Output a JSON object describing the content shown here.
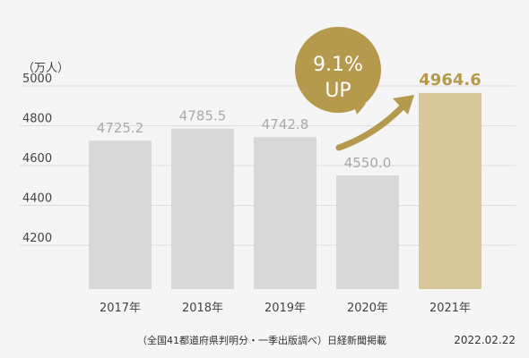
{
  "chart_data": {
    "type": "bar",
    "ylabel": "（万人）",
    "categories": [
      "2017年",
      "2018年",
      "2019年",
      "2020年",
      "2021年"
    ],
    "values": [
      4725.2,
      4785.5,
      4742.8,
      4550.0,
      4964.6
    ],
    "value_labels": [
      "4725.2",
      "4785.5",
      "4742.8",
      "4550.0",
      "4964.6"
    ],
    "yticks": [
      4200,
      4400,
      4600,
      4800,
      5000
    ],
    "ylim": [
      3980,
      5000
    ],
    "grid": true,
    "highlight_index": 4,
    "colors": {
      "bar": "#d8d8d8",
      "highlight_bar": "#d9c89c",
      "label": "#aaaaaa",
      "highlight_label": "#b59a4e",
      "badge": "#b59a4e",
      "arrow": "#b59a4e",
      "grid": "#dddddd",
      "axis_text": "#444444"
    },
    "badge": {
      "line1": "9.1%",
      "line2": "UP"
    },
    "source_note": "（全国41都道府県判明分・一季出版調べ）日経新聞掲載",
    "date": "2022.02.22"
  }
}
